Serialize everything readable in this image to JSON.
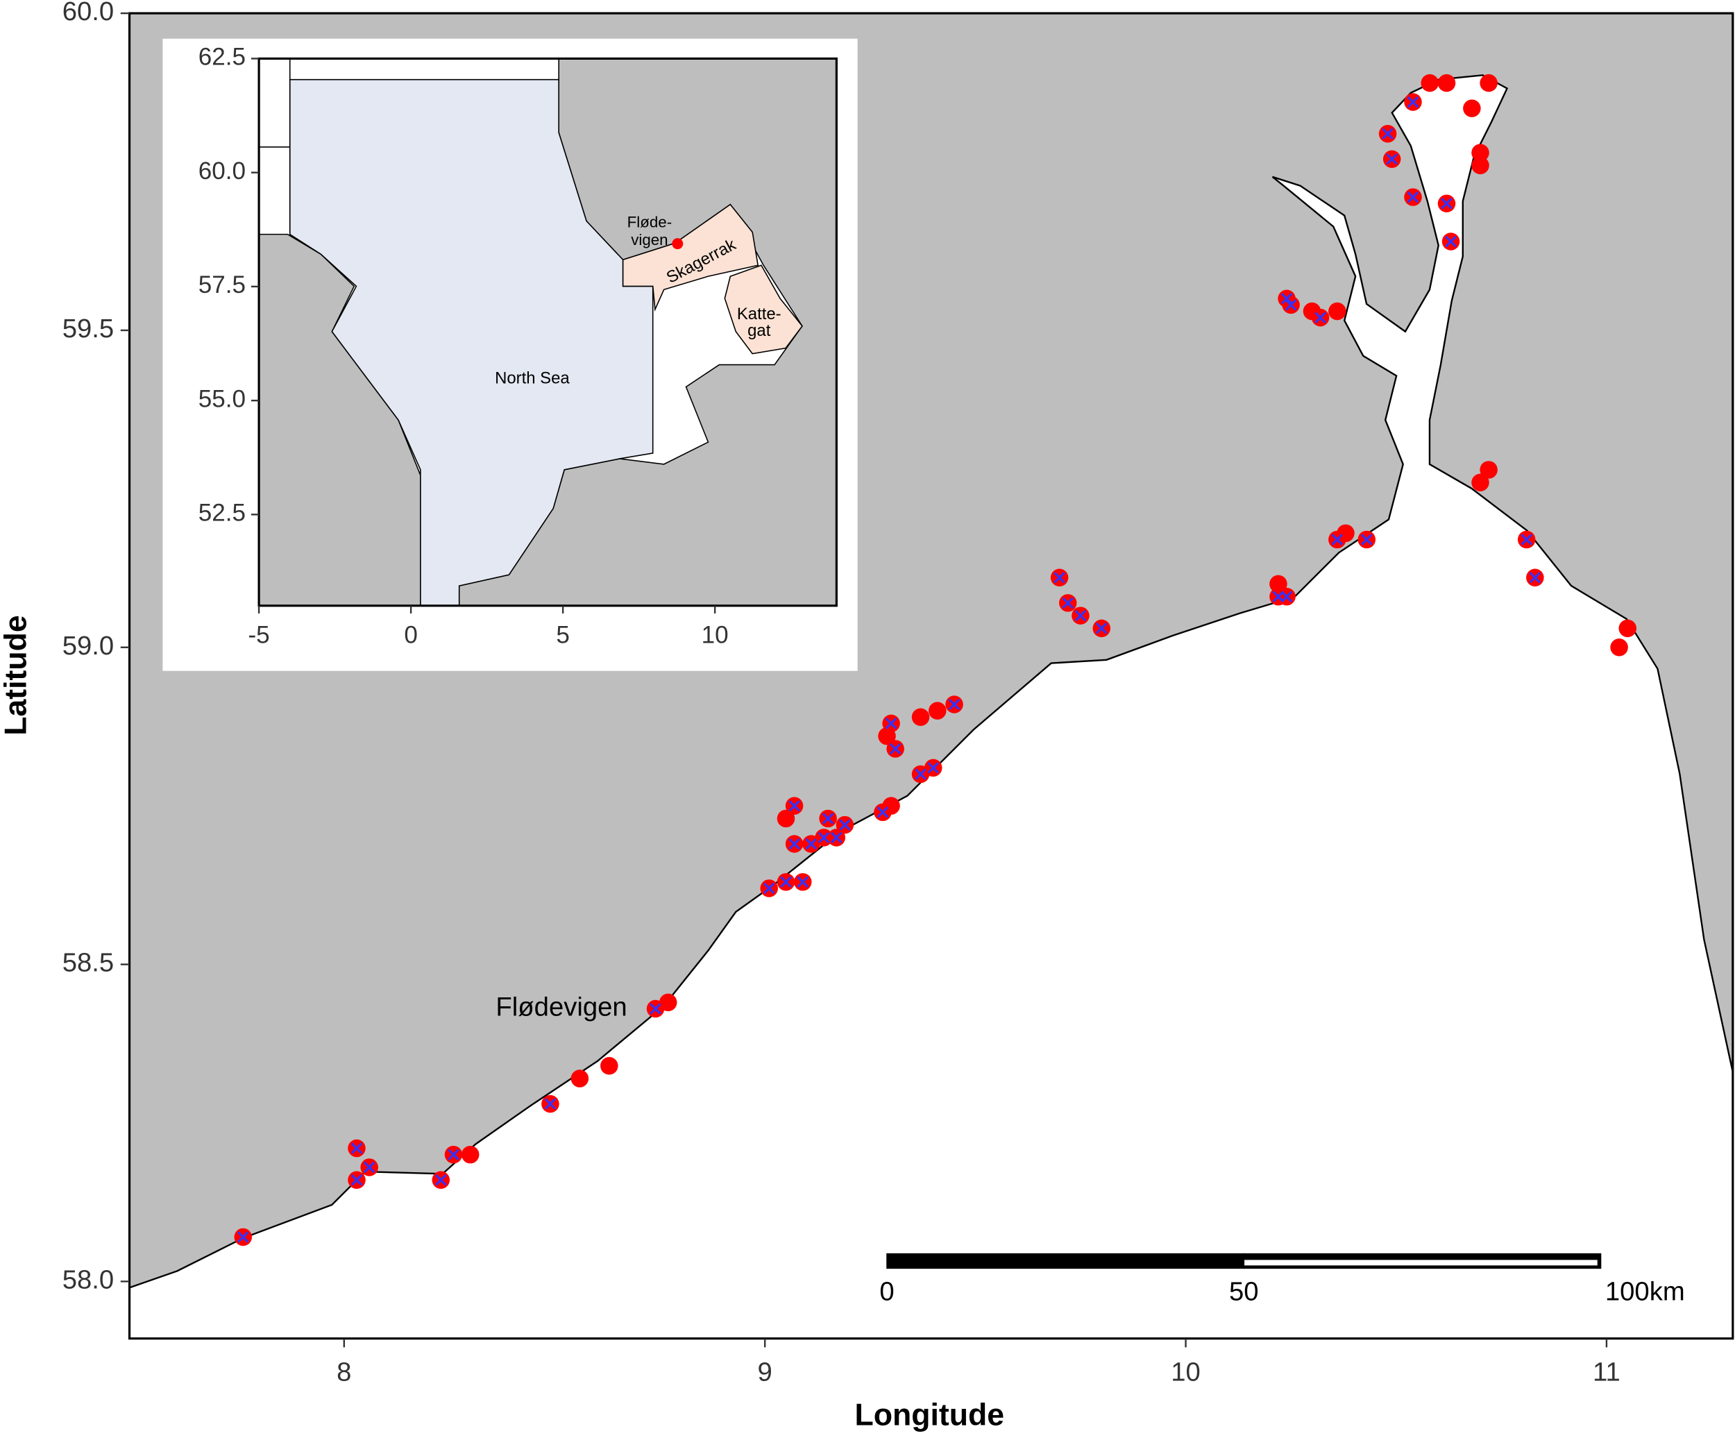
{
  "chart_data": {
    "type": "map",
    "xlabel": "Longitude",
    "ylabel": "Latitude",
    "xlim": [
      7.49,
      11.3
    ],
    "ylim": [
      57.91,
      60.0
    ],
    "xticks": [
      8,
      9,
      10,
      11
    ],
    "yticks": [
      {
        "value": 58.0,
        "label": "58.0"
      },
      58.5,
      {
        "value": 59.0,
        "label": "59.0"
      },
      59.5,
      {
        "value": 60.0,
        "label": "60.0"
      }
    ],
    "point_color": "#ff0000",
    "cross_color": "#3333ff",
    "annotation": {
      "text": "Flødevigen",
      "lon": 8.72,
      "lat": 58.43
    },
    "sites": {
      "lon": [
        7.76,
        8.03,
        8.06,
        8.03,
        8.23,
        8.26,
        8.3,
        8.49,
        8.56,
        8.63,
        8.74,
        8.77,
        9.01,
        9.05,
        9.09,
        9.05,
        9.07,
        9.07,
        9.11,
        9.14,
        9.17,
        9.15,
        9.19,
        9.28,
        9.3,
        9.3,
        9.31,
        9.29,
        9.37,
        9.4,
        9.37,
        9.41,
        9.45,
        9.7,
        9.72,
        9.75,
        9.8,
        10.22,
        10.24,
        10.22,
        10.36,
        10.38,
        10.43,
        10.24,
        10.25,
        10.3,
        10.32,
        10.36,
        10.54,
        10.58,
        10.62,
        10.72,
        10.68,
        10.48,
        10.49,
        10.54,
        10.62,
        10.63,
        10.7,
        10.7,
        10.7,
        10.72,
        10.81,
        10.83,
        11.05,
        11.03
      ],
      "lat": [
        58.07,
        58.21,
        58.18,
        58.16,
        58.16,
        58.2,
        58.2,
        58.28,
        58.32,
        58.34,
        58.43,
        58.44,
        58.62,
        58.63,
        58.63,
        58.73,
        58.75,
        58.69,
        58.69,
        58.7,
        58.7,
        58.73,
        58.72,
        58.74,
        58.75,
        58.88,
        58.84,
        58.86,
        58.8,
        58.81,
        58.89,
        58.9,
        58.91,
        59.11,
        59.07,
        59.05,
        59.03,
        59.08,
        59.08,
        59.1,
        59.17,
        59.18,
        59.17,
        59.55,
        59.54,
        59.53,
        59.52,
        59.53,
        59.86,
        59.89,
        59.89,
        59.89,
        59.85,
        59.81,
        59.77,
        59.71,
        59.7,
        59.64,
        59.78,
        59.76,
        59.26,
        59.28,
        59.17,
        59.11,
        59.03,
        59.0
      ],
      "crossed": [
        true,
        true,
        true,
        true,
        true,
        true,
        false,
        true,
        false,
        false,
        true,
        false,
        true,
        true,
        true,
        false,
        true,
        true,
        true,
        true,
        true,
        true,
        true,
        true,
        false,
        true,
        true,
        false,
        true,
        true,
        false,
        false,
        true,
        true,
        true,
        true,
        true,
        true,
        true,
        false,
        true,
        false,
        true,
        true,
        true,
        false,
        true,
        false,
        true,
        false,
        false,
        false,
        false,
        true,
        true,
        true,
        true,
        true,
        false,
        false,
        false,
        false,
        true,
        true,
        false,
        false
      ]
    },
    "scalebar": {
      "lon": 9.29,
      "lat": 58.02,
      "ticks": [
        0,
        50,
        {
          "value": 100,
          "label": "100km"
        }
      ]
    },
    "inset": {
      "xlim": [
        -5,
        14
      ],
      "ylim": [
        50.5,
        62.5
      ],
      "xticks": [
        -5,
        0,
        5,
        10
      ],
      "yticks": [
        62.5,
        {
          "value": 60.0,
          "label": "60.0"
        },
        57.5,
        {
          "value": 55.0,
          "label": "55.0"
        },
        52.5
      ],
      "site": {
        "lon": 8.77,
        "lat": 58.44
      },
      "labels": {
        "site": [
          "Fløde-",
          "vigen"
        ],
        "skagerrak": "Skagerrak",
        "kattegat": [
          "Katte-",
          "gat"
        ],
        "north_sea": "North Sea"
      }
    }
  }
}
